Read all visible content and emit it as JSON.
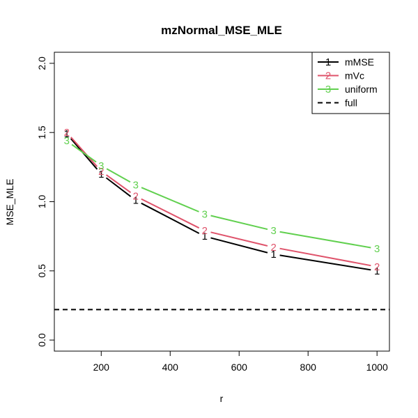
{
  "chart_data": {
    "type": "line",
    "title": "mzNormal_MSE_MLE",
    "xlabel": "r",
    "ylabel": "MSE_MLE",
    "xlim": [
      100,
      1000
    ],
    "ylim": [
      0,
      2
    ],
    "x_ticks": [
      "200",
      "400",
      "600",
      "800",
      "1000"
    ],
    "y_ticks": [
      "0.0",
      "0.5",
      "1.0",
      "1.5",
      "2.0"
    ],
    "x": [
      100,
      200,
      300,
      500,
      700,
      1000
    ],
    "series": [
      {
        "name": "mMSE",
        "symbol": "1",
        "color": "#000000",
        "dash": "solid",
        "values": [
          1.49,
          1.2,
          1.01,
          0.75,
          0.62,
          0.5
        ]
      },
      {
        "name": "mVc",
        "symbol": "2",
        "color": "#DF536B",
        "dash": "solid",
        "values": [
          1.5,
          1.22,
          1.04,
          0.79,
          0.67,
          0.53
        ]
      },
      {
        "name": "uniform",
        "symbol": "3",
        "color": "#61D04F",
        "dash": "solid",
        "values": [
          1.44,
          1.26,
          1.12,
          0.91,
          0.79,
          0.66
        ]
      }
    ],
    "reference_lines": [
      {
        "name": "full",
        "y": 0.22,
        "color": "#000000",
        "dash": "dashed"
      }
    ],
    "legend": {
      "placement": "top-right"
    },
    "grid": false
  }
}
